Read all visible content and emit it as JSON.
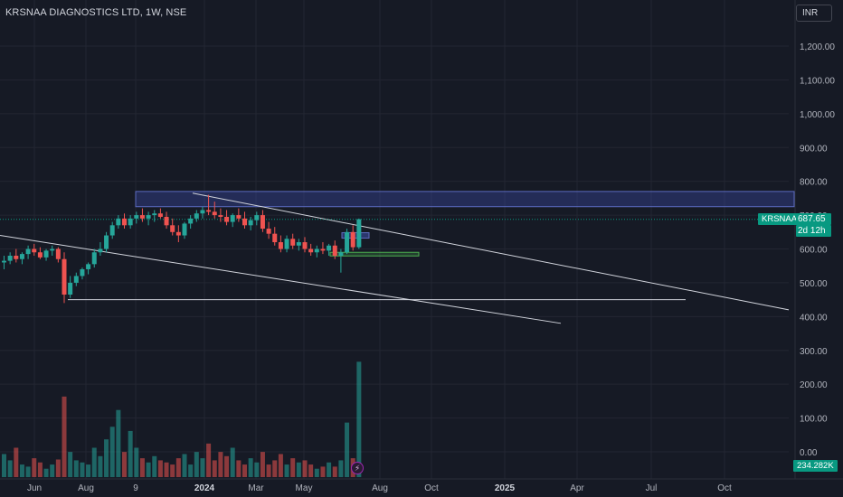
{
  "header": {
    "title": "KRSNAA DIAGNOSTICS LTD, 1W, NSE"
  },
  "currency": "INR",
  "price_labels": {
    "ticker": "KRSNAA",
    "last_price": "687.65",
    "countdown": "2d 12h",
    "volume": "234.282K"
  },
  "event_icon": "lightning-icon",
  "colors": {
    "bg": "#161a25",
    "up": "#26a69a",
    "down": "#ef5350",
    "grid": "#232632",
    "text": "#b2b5be"
  },
  "chart_data": {
    "type": "candlestick",
    "title": "KRSNAA DIAGNOSTICS LTD, 1W, NSE",
    "y_ticks": [
      "1,200.00",
      "1,100.00",
      "1,000.00",
      "900.00",
      "800.00",
      "700.00",
      "600.00",
      "500.00",
      "400.00",
      "300.00",
      "200.00",
      "100.00",
      "0.00"
    ],
    "x_ticks": [
      "Jun",
      "Aug",
      "9",
      "2024",
      "Mar",
      "May",
      "Aug",
      "Oct",
      "2025",
      "Apr",
      "Jul",
      "Oct"
    ],
    "last_price": 687.65,
    "series": [
      {
        "name": "price",
        "values": [
          [
            560,
            580,
            540,
            565
          ],
          [
            565,
            590,
            555,
            580
          ],
          [
            580,
            600,
            560,
            570
          ],
          [
            570,
            590,
            555,
            585
          ],
          [
            585,
            610,
            570,
            600
          ],
          [
            600,
            615,
            580,
            590
          ],
          [
            590,
            605,
            570,
            575
          ],
          [
            575,
            600,
            565,
            595
          ],
          [
            595,
            610,
            580,
            600
          ],
          [
            600,
            605,
            560,
            570
          ],
          [
            570,
            590,
            440,
            465
          ],
          [
            465,
            520,
            455,
            500
          ],
          [
            500,
            530,
            490,
            520
          ],
          [
            520,
            545,
            510,
            540
          ],
          [
            540,
            560,
            525,
            555
          ],
          [
            555,
            600,
            545,
            590
          ],
          [
            590,
            620,
            580,
            600
          ],
          [
            600,
            650,
            590,
            640
          ],
          [
            640,
            680,
            630,
            670
          ],
          [
            670,
            700,
            660,
            690
          ],
          [
            690,
            705,
            660,
            670
          ],
          [
            670,
            700,
            660,
            690
          ],
          [
            690,
            710,
            675,
            700
          ],
          [
            700,
            720,
            680,
            690
          ],
          [
            690,
            710,
            670,
            700
          ],
          [
            700,
            715,
            680,
            705
          ],
          [
            705,
            720,
            690,
            695
          ],
          [
            695,
            710,
            660,
            670
          ],
          [
            670,
            690,
            640,
            650
          ],
          [
            650,
            670,
            620,
            640
          ],
          [
            640,
            680,
            630,
            675
          ],
          [
            675,
            700,
            660,
            690
          ],
          [
            690,
            715,
            680,
            705
          ],
          [
            705,
            725,
            690,
            715
          ],
          [
            715,
            760,
            700,
            710
          ],
          [
            710,
            740,
            690,
            700
          ],
          [
            700,
            720,
            680,
            695
          ],
          [
            695,
            715,
            670,
            680
          ],
          [
            680,
            705,
            665,
            700
          ],
          [
            700,
            720,
            680,
            690
          ],
          [
            690,
            710,
            660,
            670
          ],
          [
            670,
            695,
            655,
            685
          ],
          [
            685,
            710,
            670,
            700
          ],
          [
            700,
            715,
            650,
            660
          ],
          [
            660,
            680,
            630,
            645
          ],
          [
            645,
            665,
            610,
            620
          ],
          [
            620,
            640,
            590,
            600
          ],
          [
            600,
            640,
            590,
            630
          ],
          [
            630,
            645,
            600,
            610
          ],
          [
            610,
            630,
            595,
            620
          ],
          [
            620,
            635,
            590,
            600
          ],
          [
            600,
            615,
            580,
            590
          ],
          [
            590,
            610,
            575,
            600
          ],
          [
            600,
            620,
            585,
            595
          ],
          [
            595,
            615,
            580,
            610
          ],
          [
            610,
            625,
            570,
            580
          ],
          [
            580,
            600,
            530,
            590
          ],
          [
            590,
            660,
            585,
            650
          ],
          [
            650,
            670,
            595,
            605
          ],
          [
            605,
            690,
            600,
            688
          ]
        ]
      },
      {
        "name": "volume",
        "values": [
          55,
          40,
          70,
          30,
          25,
          45,
          35,
          20,
          30,
          42,
          192,
          60,
          40,
          35,
          30,
          70,
          50,
          90,
          120,
          160,
          60,
          110,
          70,
          45,
          35,
          50,
          40,
          35,
          30,
          45,
          55,
          30,
          60,
          45,
          80,
          40,
          60,
          50,
          70,
          40,
          30,
          45,
          35,
          60,
          30,
          40,
          55,
          30,
          45,
          35,
          40,
          30,
          20,
          25,
          35,
          25,
          40,
          130,
          45,
          275
        ]
      }
    ],
    "ylim": [
      0,
      1250
    ]
  }
}
